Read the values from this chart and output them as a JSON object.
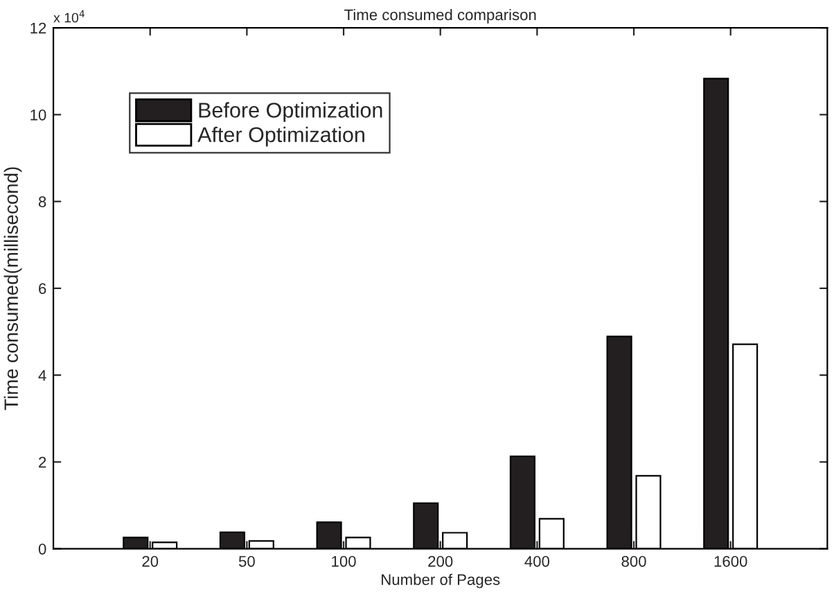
{
  "chart_data": {
    "type": "bar",
    "title": "Time consumed comparison",
    "xlabel": "Number of Pages",
    "ylabel": "Time consumed(millisecond)",
    "categories": [
      "20",
      "50",
      "100",
      "200",
      "400",
      "800",
      "1600"
    ],
    "series": [
      {
        "name": "Before Optimization",
        "color": "#231f20",
        "values": [
          0.26,
          0.38,
          0.61,
          1.05,
          2.13,
          4.89,
          10.83
        ]
      },
      {
        "name": "After Optimization",
        "color": "#ffffff",
        "values": [
          0.15,
          0.18,
          0.26,
          0.37,
          0.69,
          1.68,
          4.71
        ]
      }
    ],
    "ylim": [
      0,
      12
    ],
    "yticks": [
      0,
      2,
      4,
      6,
      8,
      10,
      12
    ],
    "annotations": [
      "x 10$^{4}$"
    ],
    "legend": "top left",
    "grid": false
  }
}
